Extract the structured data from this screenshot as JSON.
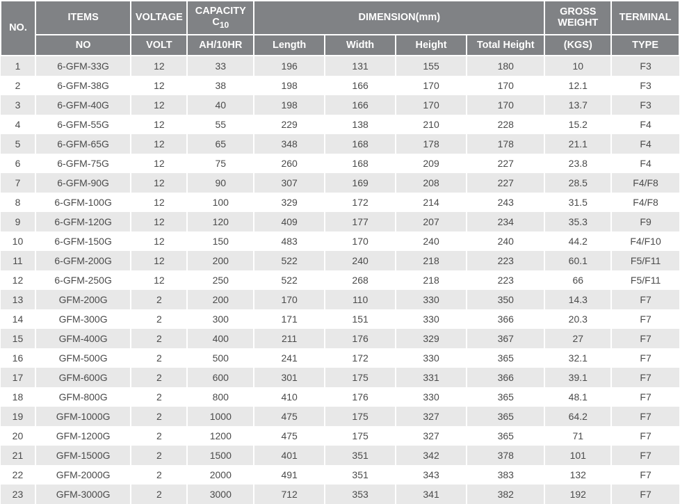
{
  "table": {
    "header_bg": "#808285",
    "header_fg": "#ffffff",
    "row_odd_bg": "#e8e8e8",
    "row_even_bg": "#ffffff",
    "text_color": "#4a4a4a",
    "columns_top": {
      "no": "NO.",
      "items": "ITEMS",
      "voltage": "VOLTAGE",
      "capacity_line1": "CAPACITY",
      "capacity_line2": "C",
      "capacity_sub": "10",
      "dimension": "DIMENSION(mm)",
      "gross_weight_line1": "GROSS",
      "gross_weight_line2": "WEIGHT",
      "terminal": "TERMINAL"
    },
    "columns_sub": {
      "items": "NO",
      "voltage": "VOLT",
      "capacity": "AH/10HR",
      "length": "Length",
      "width": "Width",
      "height": "Height",
      "total_height": "Total Height",
      "weight": "(KGS)",
      "terminal": "TYPE"
    },
    "rows": [
      {
        "no": "1",
        "item": "6-GFM-33G",
        "volt": "12",
        "cap": "33",
        "len": "196",
        "wid": "131",
        "hei": "155",
        "thei": "180",
        "wt": "10",
        "term": "F3"
      },
      {
        "no": "2",
        "item": "6-GFM-38G",
        "volt": "12",
        "cap": "38",
        "len": "198",
        "wid": "166",
        "hei": "170",
        "thei": "170",
        "wt": "12.1",
        "term": "F3"
      },
      {
        "no": "3",
        "item": "6-GFM-40G",
        "volt": "12",
        "cap": "40",
        "len": "198",
        "wid": "166",
        "hei": "170",
        "thei": "170",
        "wt": "13.7",
        "term": "F3"
      },
      {
        "no": "4",
        "item": "6-GFM-55G",
        "volt": "12",
        "cap": "55",
        "len": "229",
        "wid": "138",
        "hei": "210",
        "thei": "228",
        "wt": "15.2",
        "term": "F4"
      },
      {
        "no": "5",
        "item": "6-GFM-65G",
        "volt": "12",
        "cap": "65",
        "len": "348",
        "wid": "168",
        "hei": "178",
        "thei": "178",
        "wt": "21.1",
        "term": "F4"
      },
      {
        "no": "6",
        "item": "6-GFM-75G",
        "volt": "12",
        "cap": "75",
        "len": "260",
        "wid": "168",
        "hei": "209",
        "thei": "227",
        "wt": "23.8",
        "term": "F4"
      },
      {
        "no": "7",
        "item": "6-GFM-90G",
        "volt": "12",
        "cap": "90",
        "len": "307",
        "wid": "169",
        "hei": "208",
        "thei": "227",
        "wt": "28.5",
        "term": "F4/F8"
      },
      {
        "no": "8",
        "item": "6-GFM-100G",
        "volt": "12",
        "cap": "100",
        "len": "329",
        "wid": "172",
        "hei": "214",
        "thei": "243",
        "wt": "31.5",
        "term": "F4/F8"
      },
      {
        "no": "9",
        "item": "6-GFM-120G",
        "volt": "12",
        "cap": "120",
        "len": "409",
        "wid": "177",
        "hei": "207",
        "thei": "234",
        "wt": "35.3",
        "term": "F9"
      },
      {
        "no": "10",
        "item": "6-GFM-150G",
        "volt": "12",
        "cap": "150",
        "len": "483",
        "wid": "170",
        "hei": "240",
        "thei": "240",
        "wt": "44.2",
        "term": "F4/F10"
      },
      {
        "no": "11",
        "item": "6-GFM-200G",
        "volt": "12",
        "cap": "200",
        "len": "522",
        "wid": "240",
        "hei": "218",
        "thei": "223",
        "wt": "60.1",
        "term": "F5/F11"
      },
      {
        "no": "12",
        "item": "6-GFM-250G",
        "volt": "12",
        "cap": "250",
        "len": "522",
        "wid": "268",
        "hei": "218",
        "thei": "223",
        "wt": "66",
        "term": "F5/F11"
      },
      {
        "no": "13",
        "item": "GFM-200G",
        "volt": "2",
        "cap": "200",
        "len": "170",
        "wid": "110",
        "hei": "330",
        "thei": "350",
        "wt": "14.3",
        "term": "F7"
      },
      {
        "no": "14",
        "item": "GFM-300G",
        "volt": "2",
        "cap": "300",
        "len": "171",
        "wid": "151",
        "hei": "330",
        "thei": "366",
        "wt": "20.3",
        "term": "F7"
      },
      {
        "no": "15",
        "item": "GFM-400G",
        "volt": "2",
        "cap": "400",
        "len": "211",
        "wid": "176",
        "hei": "329",
        "thei": "367",
        "wt": "27",
        "term": "F7"
      },
      {
        "no": "16",
        "item": "GFM-500G",
        "volt": "2",
        "cap": "500",
        "len": "241",
        "wid": "172",
        "hei": "330",
        "thei": "365",
        "wt": "32.1",
        "term": "F7"
      },
      {
        "no": "17",
        "item": "GFM-600G",
        "volt": "2",
        "cap": "600",
        "len": "301",
        "wid": "175",
        "hei": "331",
        "thei": "366",
        "wt": "39.1",
        "term": "F7"
      },
      {
        "no": "18",
        "item": "GFM-800G",
        "volt": "2",
        "cap": "800",
        "len": "410",
        "wid": "176",
        "hei": "330",
        "thei": "365",
        "wt": "48.1",
        "term": "F7"
      },
      {
        "no": "19",
        "item": "GFM-1000G",
        "volt": "2",
        "cap": "1000",
        "len": "475",
        "wid": "175",
        "hei": "327",
        "thei": "365",
        "wt": "64.2",
        "term": "F7"
      },
      {
        "no": "20",
        "item": "GFM-1200G",
        "volt": "2",
        "cap": "1200",
        "len": "475",
        "wid": "175",
        "hei": "327",
        "thei": "365",
        "wt": "71",
        "term": "F7"
      },
      {
        "no": "21",
        "item": "GFM-1500G",
        "volt": "2",
        "cap": "1500",
        "len": "401",
        "wid": "351",
        "hei": "342",
        "thei": "378",
        "wt": "101",
        "term": "F7"
      },
      {
        "no": "22",
        "item": "GFM-2000G",
        "volt": "2",
        "cap": "2000",
        "len": "491",
        "wid": "351",
        "hei": "343",
        "thei": "383",
        "wt": "132",
        "term": "F7"
      },
      {
        "no": "23",
        "item": "GFM-3000G",
        "volt": "2",
        "cap": "3000",
        "len": "712",
        "wid": "353",
        "hei": "341",
        "thei": "382",
        "wt": "192",
        "term": "F7"
      }
    ]
  }
}
